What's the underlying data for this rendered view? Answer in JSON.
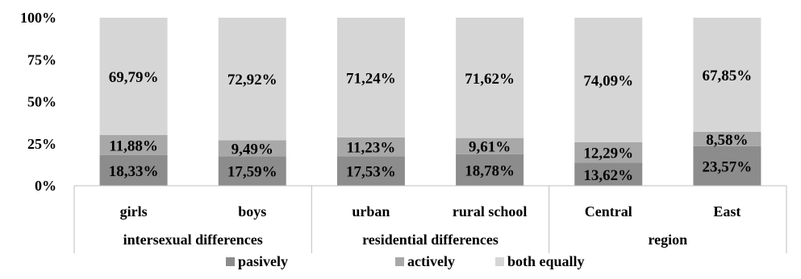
{
  "chart_data": {
    "type": "bar",
    "stacked": true,
    "percent_stacked": true,
    "categories": [
      "girls",
      "boys",
      "urban",
      "rural school",
      "Central",
      "East"
    ],
    "groups": [
      {
        "label": "intersexual differences",
        "categories": [
          "girls",
          "boys"
        ]
      },
      {
        "label": "residential differences",
        "categories": [
          "urban",
          "rural school"
        ]
      },
      {
        "label": "region",
        "categories": [
          "Central",
          "East"
        ]
      }
    ],
    "series": [
      {
        "name": "pasively",
        "color": "#8c8c8c",
        "values": [
          18.33,
          17.59,
          17.53,
          18.78,
          13.62,
          23.57
        ],
        "labels": [
          "18,33%",
          "17,59%",
          "17,53%",
          "18,78%",
          "13,62%",
          "23,57%"
        ]
      },
      {
        "name": "actively",
        "color": "#a8a8a8",
        "values": [
          11.88,
          9.49,
          11.23,
          9.61,
          12.29,
          8.58
        ],
        "labels": [
          "11,88%",
          "9,49%",
          "11,23%",
          "9,61%",
          "12,29%",
          "8,58%"
        ]
      },
      {
        "name": "both equally",
        "color": "#d6d6d6",
        "values": [
          69.79,
          72.92,
          71.24,
          71.62,
          74.09,
          67.85
        ],
        "labels": [
          "69,79%",
          "72,92%",
          "71,24%",
          "71,62%",
          "74,09%",
          "67,85%"
        ]
      }
    ],
    "ylim": [
      0,
      100
    ],
    "yticks": [
      0,
      25,
      50,
      75,
      100
    ],
    "ytick_labels": [
      "0%",
      "25%",
      "50%",
      "75%",
      "100%"
    ],
    "grid": false,
    "legend": {
      "position": "bottom",
      "entries": [
        "pasively",
        "actively",
        "both equally"
      ]
    }
  }
}
